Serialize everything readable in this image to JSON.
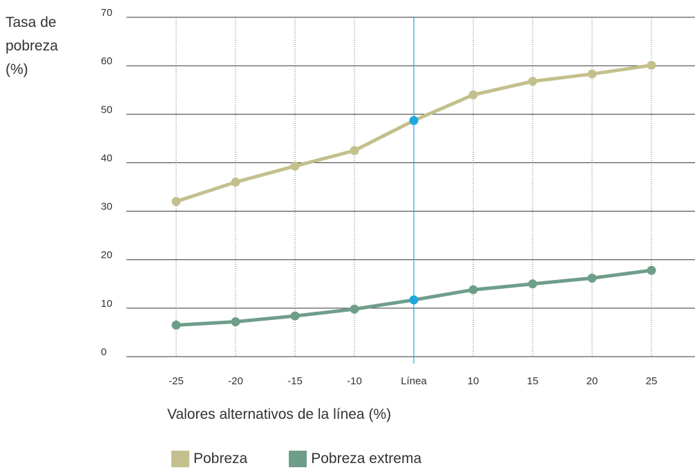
{
  "y_axis_title": [
    "Tasa de",
    "pobreza",
    "(%)"
  ],
  "x_axis_title": "Valores alternativos de la línea (%)",
  "legend": [
    {
      "label": "Pobreza",
      "color": "#c3c08d"
    },
    {
      "label": "Pobreza extrema",
      "color": "#6e9e8a"
    }
  ],
  "highlight_color": "#1fa7e0",
  "chart_data": {
    "type": "line",
    "categories": [
      "-25",
      "-20",
      "-15",
      "-10",
      "Línea",
      "10",
      "15",
      "20",
      "25"
    ],
    "highlight_category": "Línea",
    "ylim": [
      0,
      70
    ],
    "yticks": [
      0,
      10,
      20,
      30,
      40,
      50,
      60,
      70
    ],
    "grid": "horizontal solid, vertical dotted",
    "legend_position": "bottom",
    "series": [
      {
        "name": "Pobreza",
        "color": "#c3c08d",
        "values": [
          32.0,
          36.0,
          39.3,
          42.5,
          48.7,
          54.0,
          56.8,
          58.3,
          60.1
        ]
      },
      {
        "name": "Pobreza extrema",
        "color": "#6e9e8a",
        "values": [
          6.5,
          7.2,
          8.4,
          9.8,
          11.7,
          13.8,
          15.0,
          16.2,
          17.8
        ]
      }
    ]
  }
}
